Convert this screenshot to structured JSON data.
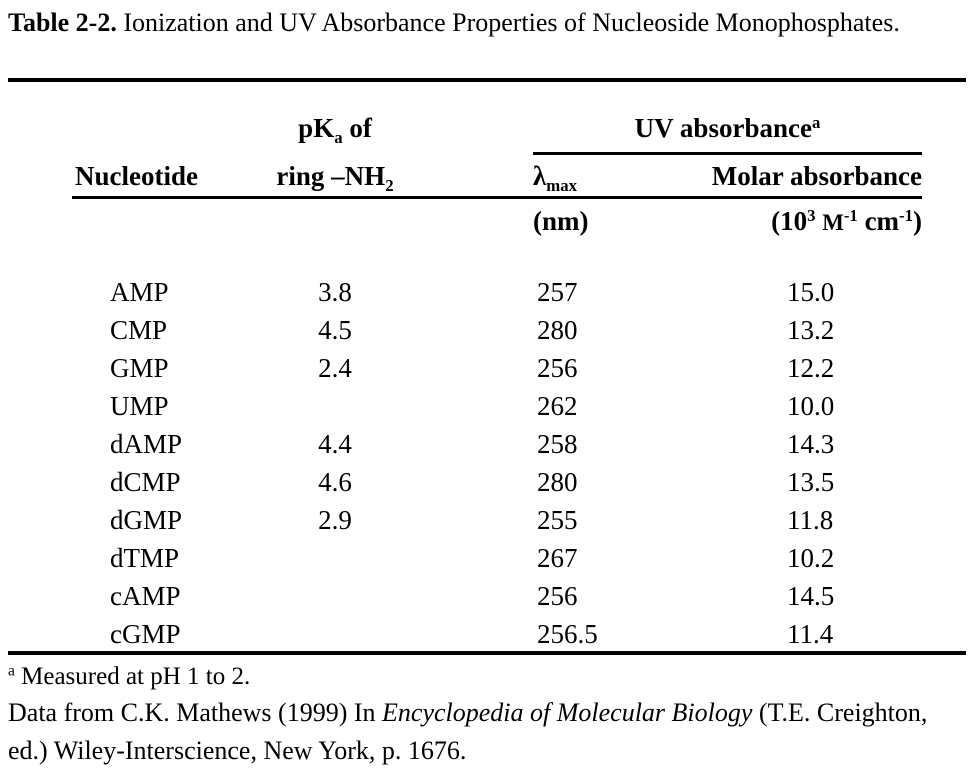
{
  "title": {
    "label": "Table 2-2.",
    "text": " Ionization and UV Absorbance Properties of Nucleoside Monophosphates."
  },
  "header": {
    "nucleotide": "Nucleotide",
    "pka_line1": {
      "base": "pK",
      "sub": "a",
      "rest": " of"
    },
    "pka_line2": {
      "base": "ring –NH",
      "sub": "2"
    },
    "uv_group": {
      "base": "UV absorbance",
      "sup": "a"
    },
    "lambda": {
      "base": "λ",
      "sub": "max"
    },
    "lambda_unit": "(nm)",
    "molar": "Molar absorbance",
    "molar_unit": {
      "p1": "(10",
      "s1": "3",
      "sp": " ",
      "m": "M",
      "s2": "-1",
      "p3": " cm",
      "s3": "-1",
      "p4": ")"
    }
  },
  "table": {
    "columns": [
      "Nucleotide",
      "pKa of ring -NH2",
      "lambda max (nm)",
      "Molar absorbance (10^3 M^-1 cm^-1)"
    ],
    "rows": [
      {
        "nucleotide": "AMP",
        "pka": "3.8",
        "lambda_max": "257",
        "molar_absorbance": "15.0"
      },
      {
        "nucleotide": "CMP",
        "pka": "4.5",
        "lambda_max": "280",
        "molar_absorbance": "13.2"
      },
      {
        "nucleotide": "GMP",
        "pka": "2.4",
        "lambda_max": "256",
        "molar_absorbance": "12.2"
      },
      {
        "nucleotide": "UMP",
        "pka": "",
        "lambda_max": "262",
        "molar_absorbance": "10.0"
      },
      {
        "nucleotide": "dAMP",
        "pka": "4.4",
        "lambda_max": "258",
        "molar_absorbance": "14.3"
      },
      {
        "nucleotide": "dCMP",
        "pka": "4.6",
        "lambda_max": "280",
        "molar_absorbance": "13.5"
      },
      {
        "nucleotide": "dGMP",
        "pka": "2.9",
        "lambda_max": "255",
        "molar_absorbance": "11.8"
      },
      {
        "nucleotide": "dTMP",
        "pka": "",
        "lambda_max": "267",
        "molar_absorbance": "10.2"
      },
      {
        "nucleotide": "cAMP",
        "pka": "",
        "lambda_max": "256",
        "molar_absorbance": "14.5"
      },
      {
        "nucleotide": "cGMP",
        "pka": "",
        "lambda_max": "256.5",
        "molar_absorbance": "11.4"
      }
    ]
  },
  "footnotes": {
    "a_marker": "a",
    "a_text": " Measured at pH 1 to 2.",
    "source_pre": "Data from C.K. Mathews (1999) In ",
    "source_italic": "Encyclopedia of Molecular Biology",
    "source_post": " (T.E. Creighton, ed.) Wiley-Interscience, New York, p. 1676."
  },
  "colors": {
    "text": "#000000",
    "background": "#ffffff",
    "rule": "#000000"
  }
}
